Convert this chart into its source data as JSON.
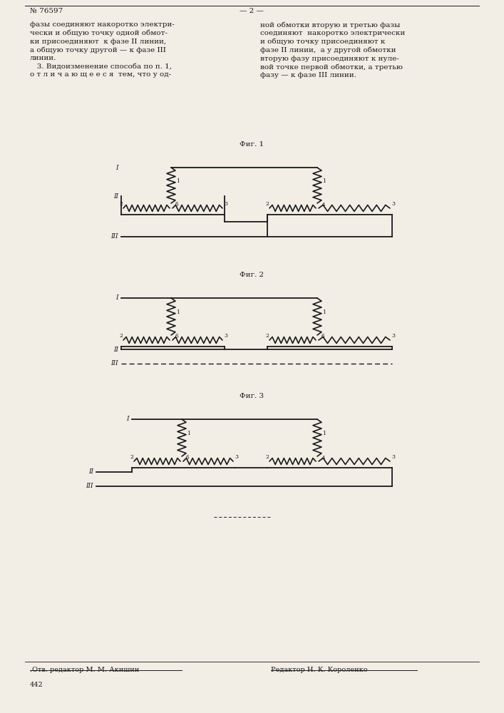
{
  "page_number": "№ 76597",
  "page_num_right": "— 2 —",
  "text_left": "фазы соединяют накоротко электри-\nчески и общую точку одной обмот-\nки присоединяют  к фазе II линии,\nа общую точку другой — к фазе III\nлинии.\n   3. Видоизменение способа по п. 1,\nо т л и ч а ю щ е е с я  тем, что у од-",
  "text_right": "ной обмотки вторую и третью фазы\nсоединяют  накоротко электрически\nи общую точку присоединяют к\nфазе II линии,  а у другой обмотки\nвторую фазу присоединяют к нуле-\nвой точке первой обмотки, а третью\nфазу — к фазе III линии.",
  "fig1_label": "Фиг. 1",
  "fig2_label": "Фиг. 2",
  "fig3_label": "Фиг. 3",
  "bottom_left": ".Отв. редактор М. М. Акишин",
  "bottom_right": "Редактор Н. К. Короленко",
  "page_bottom": "442",
  "bg_color": "#f2ede5",
  "line_color": "#1a1a1a",
  "text_color": "#1a1a1a"
}
